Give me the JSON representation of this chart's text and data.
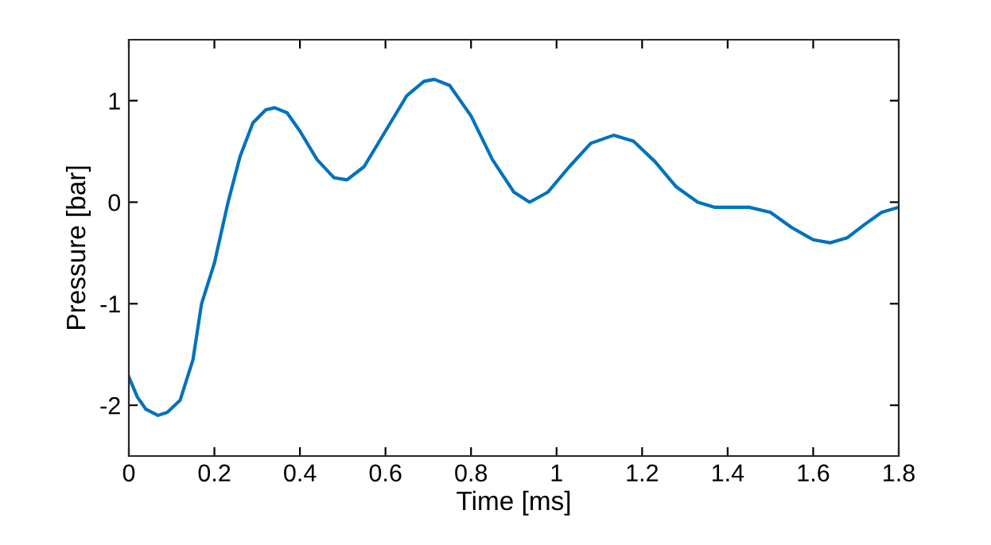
{
  "chart_data": {
    "type": "line",
    "xlabel": "Time [ms]",
    "ylabel": "Pressure [bar]",
    "xlim": [
      0,
      1.8
    ],
    "xticks": [
      0,
      0.2,
      0.4,
      0.6,
      0.8,
      1,
      1.2,
      1.4,
      1.6,
      1.8
    ],
    "ylim": [
      -2.5,
      1.6
    ],
    "yticks": [
      -2,
      -1,
      0,
      1
    ],
    "grid": false,
    "legend": false,
    "series": [
      {
        "color": "#0072bd",
        "x": [
          0,
          0.02,
          0.04,
          0.068,
          0.09,
          0.12,
          0.15,
          0.17,
          0.2,
          0.232,
          0.26,
          0.29,
          0.32,
          0.341,
          0.37,
          0.4,
          0.44,
          0.48,
          0.51,
          0.55,
          0.6,
          0.65,
          0.69,
          0.714,
          0.75,
          0.8,
          0.85,
          0.9,
          0.937,
          0.98,
          1.03,
          1.08,
          1.134,
          1.18,
          1.23,
          1.28,
          1.33,
          1.37,
          1.41,
          1.45,
          1.5,
          1.55,
          1.6,
          1.64,
          1.68,
          1.72,
          1.76,
          1.8
        ],
        "values": [
          -1.72,
          -1.92,
          -2.04,
          -2.1,
          -2.07,
          -1.95,
          -1.55,
          -1.0,
          -0.6,
          0.0,
          0.45,
          0.78,
          0.91,
          0.93,
          0.88,
          0.7,
          0.42,
          0.24,
          0.22,
          0.35,
          0.7,
          1.05,
          1.19,
          1.21,
          1.15,
          0.85,
          0.42,
          0.1,
          0.0,
          0.1,
          0.35,
          0.58,
          0.66,
          0.6,
          0.4,
          0.15,
          0.0,
          -0.05,
          -0.05,
          -0.05,
          -0.1,
          -0.25,
          -0.37,
          -0.4,
          -0.35,
          -0.22,
          -0.1,
          -0.05
        ]
      }
    ]
  }
}
